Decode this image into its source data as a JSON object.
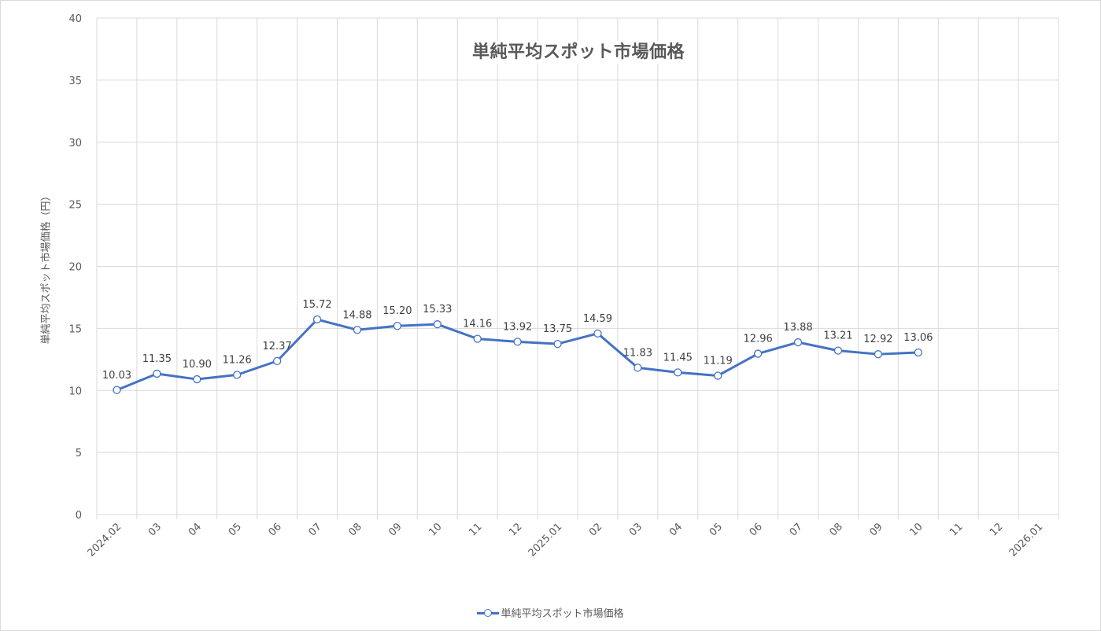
{
  "chart_data": {
    "type": "line",
    "title": "単純平均スポット市場価格",
    "xlabel": "",
    "ylabel": "単純平均スポット市場価格（円）",
    "ylim": [
      0,
      40
    ],
    "yticks": [
      0,
      5,
      10,
      15,
      20,
      25,
      30,
      35,
      40
    ],
    "grid": true,
    "legend_position": "bottom",
    "categories": [
      "2024.02",
      "03",
      "04",
      "05",
      "06",
      "07",
      "08",
      "09",
      "10",
      "11",
      "12",
      "2025.01",
      "02",
      "03",
      "04",
      "05",
      "06",
      "07",
      "08",
      "09",
      "10",
      "11",
      "12",
      "2026.01"
    ],
    "series": [
      {
        "name": "単純平均スポット市場価格",
        "color": "#4472c4",
        "values": [
          10.03,
          11.35,
          10.9,
          11.26,
          12.37,
          15.72,
          14.88,
          15.2,
          15.33,
          14.16,
          13.92,
          13.75,
          14.59,
          11.83,
          11.45,
          11.19,
          12.96,
          13.88,
          13.21,
          12.92,
          13.06,
          null,
          null,
          null
        ],
        "labels": [
          "10.03",
          "11.35",
          "10.90",
          "11.26",
          "12.37",
          "15.72",
          "14.88",
          "15.20",
          "15.33",
          "14.16",
          "13.92",
          "13.75",
          "14.59",
          "11.83",
          "11.45",
          "11.19",
          "12.96",
          "13.88",
          "13.21",
          "12.92",
          "13.06"
        ]
      }
    ]
  },
  "legend": {
    "label": "単純平均スポット市場価格"
  }
}
